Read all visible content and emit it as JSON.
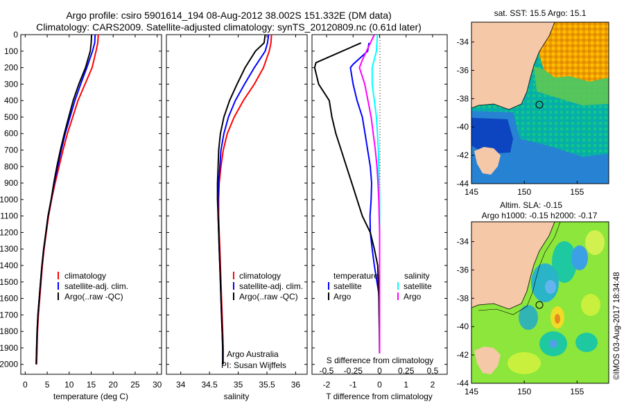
{
  "header": {
    "title_line1": "Argo profile: csiro 5901614_194 08-Aug-2012 38.002S 151.332E (DM data)",
    "title_line2": "Climatology: CARS2009. Satellite-adjusted climatology: synTS_20120809.nc (0.61d later)"
  },
  "colors": {
    "climatology": "#ff0000",
    "satellite": "#0000ff",
    "argo": "#000000",
    "sal_satellite": "#00ffff",
    "sal_argo": "#ff00ff"
  },
  "depth_axis": {
    "ticks": [
      0,
      100,
      200,
      300,
      400,
      500,
      600,
      700,
      800,
      900,
      1000,
      1100,
      1200,
      1300,
      1400,
      1500,
      1600,
      1700,
      1800,
      1900,
      2000
    ],
    "range": [
      0,
      2060
    ]
  },
  "panels": {
    "temperature": {
      "xlabel": "temperature (deg C)",
      "xticks": [
        0,
        5,
        10,
        15,
        20,
        25,
        30
      ],
      "legend": [
        "climatology",
        "satellite-adj. clim.",
        "Argo(..raw -QC)"
      ]
    },
    "salinity": {
      "xlabel": "salinity",
      "xticks": [
        "34",
        "34.5",
        "35",
        "35.5",
        "36"
      ],
      "legend": [
        "climatology",
        "satellite-adj. clim.",
        "Argo(..raw -QC)"
      ],
      "annotation": [
        "Argo Australia",
        "PI: Susan Wijffels"
      ]
    },
    "difference": {
      "xlabel_bottom": "T difference from climatology",
      "xlabel_top": "S difference from climatology",
      "t_ticks": [
        "-2",
        "-1",
        "0",
        "1",
        "2"
      ],
      "s_ticks": [
        "-0.5",
        "-0.25",
        "0",
        "0.25",
        "0.5"
      ],
      "legend_temp_title": "temperature",
      "legend_sal_title": "salinity",
      "legend_items": [
        "satellite",
        "Argo"
      ]
    }
  },
  "maps": {
    "sst": {
      "title": "sat. SST: 15.5 Argo: 15.1",
      "xticks": [
        "145",
        "150",
        "155"
      ],
      "yticks": [
        "-34",
        "-36",
        "-38",
        "-40",
        "-42",
        "-44"
      ]
    },
    "sla": {
      "title_line1": "Altim. SLA: -0.15",
      "title_line2": "Argo h1000: -0.15 h2000: -0.17",
      "xticks": [
        "145",
        "150",
        "155"
      ],
      "yticks": [
        "-34",
        "-36",
        "-38",
        "-40",
        "-42",
        "-44"
      ]
    },
    "argo_position": {
      "lon": 151.332,
      "lat": -38.002
    }
  },
  "credit": "©IMOS 03-Aug-2017 18:34:48",
  "chart_data": [
    {
      "type": "line",
      "title": "",
      "xlabel": "temperature (deg C)",
      "ylabel": "",
      "xlim": [
        -1,
        31
      ],
      "ylim": [
        2060,
        0
      ],
      "series": [
        {
          "name": "climatology",
          "x": [
            16.6,
            16.5,
            16.1,
            15.2,
            13.6,
            12.0,
            10.8,
            9.6,
            8.6,
            7.7,
            6.8,
            6.0,
            5.3,
            4.8,
            4.3,
            3.9,
            3.6,
            3.3,
            3.0,
            2.8,
            2.7,
            2.6
          ],
          "y": [
            0,
            50,
            100,
            200,
            300,
            400,
            500,
            600,
            700,
            800,
            900,
            1000,
            1100,
            1200,
            1300,
            1400,
            1500,
            1600,
            1700,
            1800,
            1900,
            2000
          ]
        },
        {
          "name": "satellite-adj. clim.",
          "x": [
            15.9,
            15.8,
            15.3,
            14.0,
            12.6,
            11.3,
            10.2,
            9.1,
            8.2,
            7.4,
            6.6,
            5.9,
            5.2,
            4.7,
            4.2,
            3.8,
            3.5,
            3.2,
            2.9,
            2.7,
            2.6,
            2.5
          ],
          "y": [
            0,
            50,
            100,
            200,
            300,
            400,
            500,
            600,
            700,
            800,
            900,
            1000,
            1100,
            1200,
            1300,
            1400,
            1500,
            1600,
            1700,
            1800,
            1900,
            2000
          ]
        },
        {
          "name": "Argo(..raw -QC)",
          "x": [
            15.1,
            15.0,
            14.8,
            13.7,
            12.2,
            10.9,
            9.9,
            8.9,
            8.0,
            7.2,
            6.5,
            5.9,
            5.2,
            4.7,
            4.2,
            3.8,
            3.5,
            3.2,
            2.9,
            2.7,
            2.6,
            2.5
          ],
          "y": [
            0,
            50,
            100,
            200,
            300,
            400,
            500,
            600,
            700,
            800,
            900,
            1000,
            1100,
            1200,
            1300,
            1400,
            1500,
            1600,
            1700,
            1800,
            1900,
            2000
          ]
        }
      ]
    },
    {
      "type": "line",
      "title": "",
      "xlabel": "salinity",
      "ylabel": "",
      "xlim": [
        33.75,
        36.2
      ],
      "ylim": [
        2060,
        0
      ],
      "series": [
        {
          "name": "climatology",
          "x": [
            35.58,
            35.57,
            35.54,
            35.44,
            35.28,
            35.09,
            34.93,
            34.81,
            34.74,
            34.7,
            34.67,
            34.66,
            34.66,
            34.67,
            34.68,
            34.69,
            34.7,
            34.71,
            34.72,
            34.73,
            34.74,
            34.74
          ],
          "y": [
            0,
            50,
            100,
            200,
            300,
            400,
            500,
            600,
            700,
            800,
            900,
            1000,
            1100,
            1200,
            1300,
            1400,
            1500,
            1600,
            1700,
            1800,
            1900,
            2000
          ]
        },
        {
          "name": "satellite-adj. clim.",
          "x": [
            35.53,
            35.51,
            35.47,
            35.28,
            35.11,
            34.95,
            34.83,
            34.75,
            34.7,
            34.68,
            34.66,
            34.65,
            34.65,
            34.66,
            34.67,
            34.68,
            34.69,
            34.7,
            34.71,
            34.72,
            34.73,
            34.73
          ],
          "y": [
            0,
            50,
            100,
            200,
            300,
            400,
            500,
            600,
            700,
            800,
            900,
            1000,
            1100,
            1200,
            1300,
            1400,
            1500,
            1600,
            1700,
            1800,
            1900,
            2000
          ]
        },
        {
          "name": "Argo(..raw -QC)",
          "x": [
            35.47,
            35.45,
            35.3,
            35.12,
            34.98,
            34.85,
            34.75,
            34.69,
            34.66,
            34.65,
            34.64,
            34.64,
            34.65,
            34.66,
            34.67,
            34.68,
            34.69,
            34.7,
            34.71,
            34.72,
            34.73,
            34.73
          ],
          "y": [
            0,
            50,
            100,
            200,
            300,
            400,
            500,
            600,
            700,
            800,
            900,
            1000,
            1100,
            1200,
            1300,
            1400,
            1500,
            1600,
            1700,
            1800,
            1900,
            2000
          ]
        }
      ]
    },
    {
      "type": "line",
      "title": "",
      "xlabel": "T difference from climatology",
      "ylabel": "",
      "xlim": [
        -2.55,
        2.55
      ],
      "ylim": [
        2060,
        0
      ],
      "series": [
        {
          "name": "temperature satellite",
          "x": [
            -0.4,
            -0.45,
            -1.0,
            -1.1,
            -1.0,
            -0.85,
            -0.65,
            -0.55,
            -0.45,
            -0.35,
            -0.3,
            -0.32,
            -0.36,
            -0.35,
            -0.28,
            -0.2,
            -0.1,
            0.0,
            0.0,
            0.0,
            0.0
          ],
          "y": [
            50,
            100,
            180,
            200,
            300,
            400,
            500,
            600,
            700,
            800,
            900,
            1000,
            1100,
            1200,
            1300,
            1400,
            1500,
            1600,
            1700,
            1800,
            2000
          ]
        },
        {
          "name": "temperature Argo",
          "x": [
            -0.7,
            -2.4,
            -2.45,
            -2.3,
            -1.9,
            -1.8,
            -1.65,
            -1.45,
            -1.25,
            -1.05,
            -0.85,
            -0.65,
            -0.35,
            -0.2,
            -0.07,
            -0.05,
            -0.03,
            -0.02,
            -0.01,
            0.0
          ],
          "y": [
            50,
            170,
            200,
            300,
            400,
            500,
            600,
            700,
            800,
            900,
            1000,
            1100,
            1200,
            1300,
            1400,
            1500,
            1600,
            1700,
            1800,
            2000
          ]
        },
        {
          "name": "salinity satellite",
          "x": [
            -0.02,
            -0.03,
            -0.07,
            -0.07,
            -0.05,
            -0.03,
            -0.02,
            -0.012,
            -0.008,
            -0.004,
            0.0,
            0.0,
            0.0,
            0.0
          ],
          "y": [
            0,
            100,
            200,
            300,
            400,
            500,
            600,
            700,
            800,
            900,
            1000,
            1200,
            1600,
            2000
          ]
        },
        {
          "name": "salinity Argo",
          "x": [
            -0.05,
            -0.16,
            -0.19,
            -0.14,
            -0.11,
            -0.08,
            -0.06,
            -0.04,
            -0.025,
            -0.015,
            -0.008,
            0.0,
            0.0,
            0.0
          ],
          "y": [
            0,
            150,
            200,
            300,
            400,
            500,
            600,
            700,
            800,
            900,
            1000,
            1200,
            1600,
            2000
          ]
        }
      ]
    }
  ]
}
